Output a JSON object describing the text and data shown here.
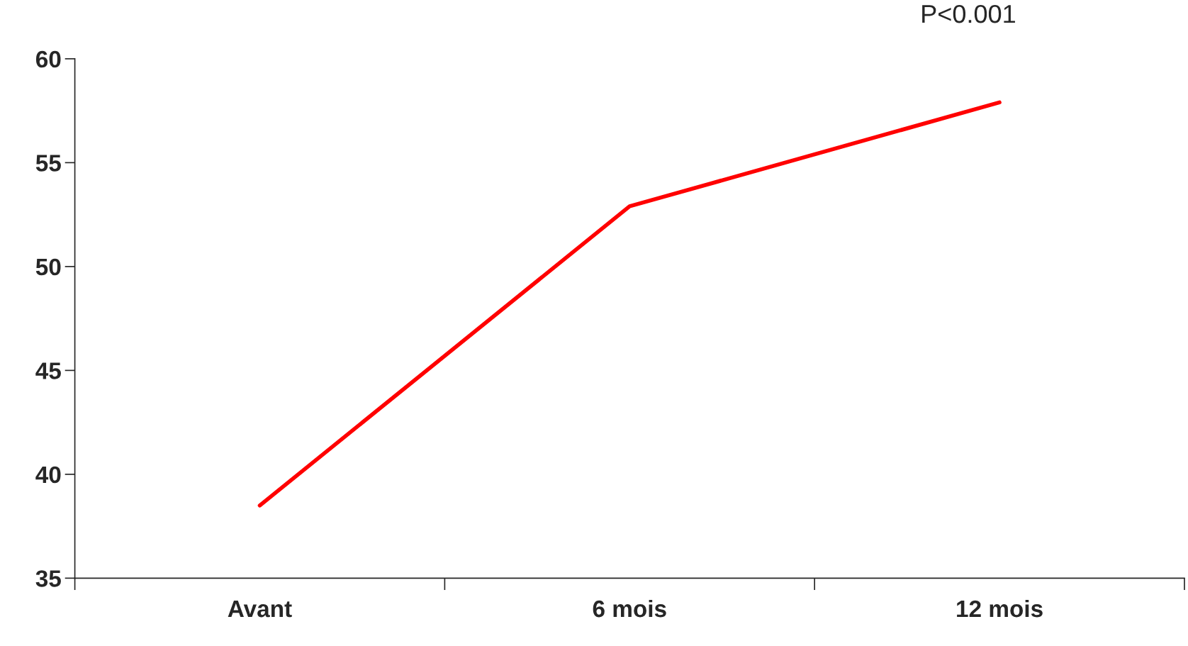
{
  "chart_data": {
    "type": "line",
    "categories": [
      "Avant",
      "6 mois",
      "12 mois"
    ],
    "series": [
      {
        "color": "#ff0000",
        "values": [
          38.5,
          52.9,
          57.9
        ]
      }
    ],
    "ylim": [
      35,
      60
    ],
    "yticks": [
      35,
      40,
      45,
      50,
      55,
      60
    ],
    "grid": false,
    "legend": false,
    "marker": "none",
    "line_style": "solid",
    "annotations": [
      "P<0.001"
    ]
  }
}
